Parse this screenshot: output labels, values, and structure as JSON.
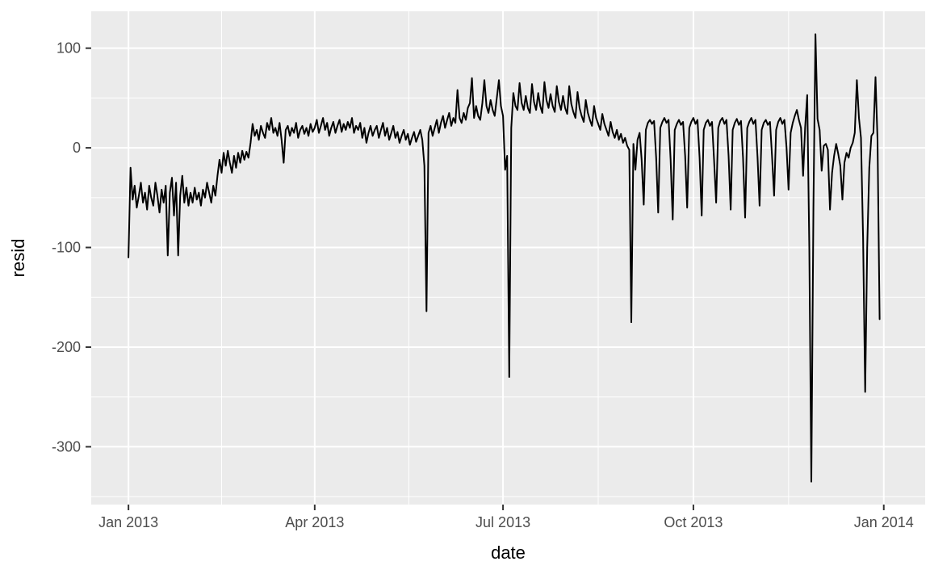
{
  "chart_data": {
    "type": "line",
    "title": "",
    "xlabel": "date",
    "ylabel": "resid",
    "x_start_date": "2013-01-01",
    "x_unit": "days",
    "legend": "none",
    "grid": "on",
    "panel_style": "ggplot2-grey",
    "ylim": [
      -358,
      137
    ],
    "xlim_days": [
      -18,
      385
    ],
    "y_ticks": [
      {
        "label": "100",
        "value": 100
      },
      {
        "label": "0",
        "value": 0
      },
      {
        "label": "-100",
        "value": -100
      },
      {
        "label": "-200",
        "value": -200
      },
      {
        "label": "-300",
        "value": -300
      }
    ],
    "y_minor": [
      50,
      -50,
      -150,
      -250,
      -350
    ],
    "x_ticks": [
      {
        "label": "Jan 2013",
        "day": 0
      },
      {
        "label": "Apr 2013",
        "day": 90
      },
      {
        "label": "Jul 2013",
        "day": 181
      },
      {
        "label": "Oct 2013",
        "day": 273
      },
      {
        "label": "Jan 2014",
        "day": 365
      }
    ],
    "x_minor_days": [
      45,
      135.5,
      227,
      319
    ],
    "colors": {
      "panel_bg": "#EBEBEB",
      "grid_major": "#FFFFFF",
      "grid_minor": "#FFFFFF",
      "line": "#000000",
      "tick_mark": "#333333",
      "tick_label": "#4D4D4D",
      "axis_title": "#000000"
    },
    "series": [
      {
        "name": "resid",
        "values": [
          -110,
          -20,
          -52,
          -38,
          -60,
          -48,
          -35,
          -55,
          -45,
          -62,
          -38,
          -50,
          -58,
          -35,
          -48,
          -65,
          -42,
          -55,
          -38,
          -108,
          -45,
          -30,
          -68,
          -35,
          -108,
          -48,
          -28,
          -55,
          -40,
          -58,
          -45,
          -55,
          -40,
          -52,
          -45,
          -58,
          -42,
          -50,
          -35,
          -45,
          -55,
          -38,
          -48,
          -28,
          -12,
          -25,
          -5,
          -18,
          -3,
          -15,
          -25,
          -8,
          -20,
          -5,
          -15,
          -3,
          -12,
          -4,
          -10,
          5,
          24,
          12,
          18,
          8,
          22,
          15,
          10,
          25,
          18,
          30,
          15,
          20,
          12,
          25,
          8,
          -15,
          18,
          22,
          12,
          20,
          15,
          25,
          10,
          18,
          22,
          14,
          20,
          12,
          24,
          16,
          20,
          28,
          15,
          22,
          30,
          18,
          25,
          12,
          20,
          26,
          15,
          22,
          28,
          16,
          24,
          18,
          26,
          20,
          30,
          15,
          22,
          18,
          25,
          10,
          20,
          5,
          15,
          22,
          12,
          18,
          22,
          10,
          18,
          25,
          12,
          20,
          8,
          15,
          22,
          10,
          16,
          5,
          12,
          18,
          8,
          14,
          3,
          10,
          16,
          6,
          12,
          18,
          8,
          -18,
          -164,
          15,
          22,
          12,
          20,
          28,
          15,
          25,
          32,
          20,
          28,
          35,
          22,
          30,
          25,
          58,
          30,
          25,
          35,
          28,
          40,
          45,
          70,
          30,
          42,
          32,
          28,
          45,
          68,
          42,
          35,
          48,
          38,
          32,
          50,
          68,
          42,
          32,
          -22,
          -8,
          -230,
          20,
          55,
          42,
          38,
          65,
          45,
          38,
          52,
          40,
          35,
          64,
          46,
          38,
          55,
          42,
          35,
          66,
          48,
          40,
          54,
          42,
          36,
          62,
          46,
          38,
          52,
          40,
          34,
          62,
          44,
          36,
          30,
          56,
          40,
          32,
          26,
          48,
          35,
          28,
          22,
          42,
          30,
          24,
          18,
          34,
          24,
          18,
          12,
          26,
          16,
          10,
          18,
          8,
          14,
          5,
          10,
          2,
          -2,
          -175,
          4,
          -22,
          8,
          15,
          -12,
          -57,
          18,
          25,
          28,
          24,
          27,
          -10,
          -65,
          20,
          26,
          30,
          25,
          28,
          -12,
          -72,
          18,
          24,
          28,
          23,
          26,
          -8,
          -60,
          20,
          26,
          30,
          24,
          28,
          -10,
          -68,
          18,
          25,
          28,
          22,
          26,
          -12,
          -55,
          20,
          27,
          30,
          24,
          28,
          -8,
          -62,
          18,
          25,
          29,
          23,
          27,
          -10,
          -70,
          20,
          26,
          30,
          24,
          28,
          -10,
          -58,
          18,
          25,
          28,
          23,
          26,
          -8,
          -48,
          18,
          26,
          30,
          24,
          28,
          0,
          -42,
          15,
          25,
          32,
          38,
          28,
          20,
          -28,
          20,
          53,
          -100,
          -335,
          -60,
          114,
          29,
          18,
          -23,
          2,
          4,
          -2,
          -62,
          -25,
          -8,
          4,
          -6,
          -18,
          -52,
          -15,
          -5,
          -10,
          0,
          5,
          15,
          68,
          30,
          10,
          -90,
          -245,
          -100,
          -20,
          12,
          15,
          71,
          8,
          -172
        ]
      }
    ]
  }
}
